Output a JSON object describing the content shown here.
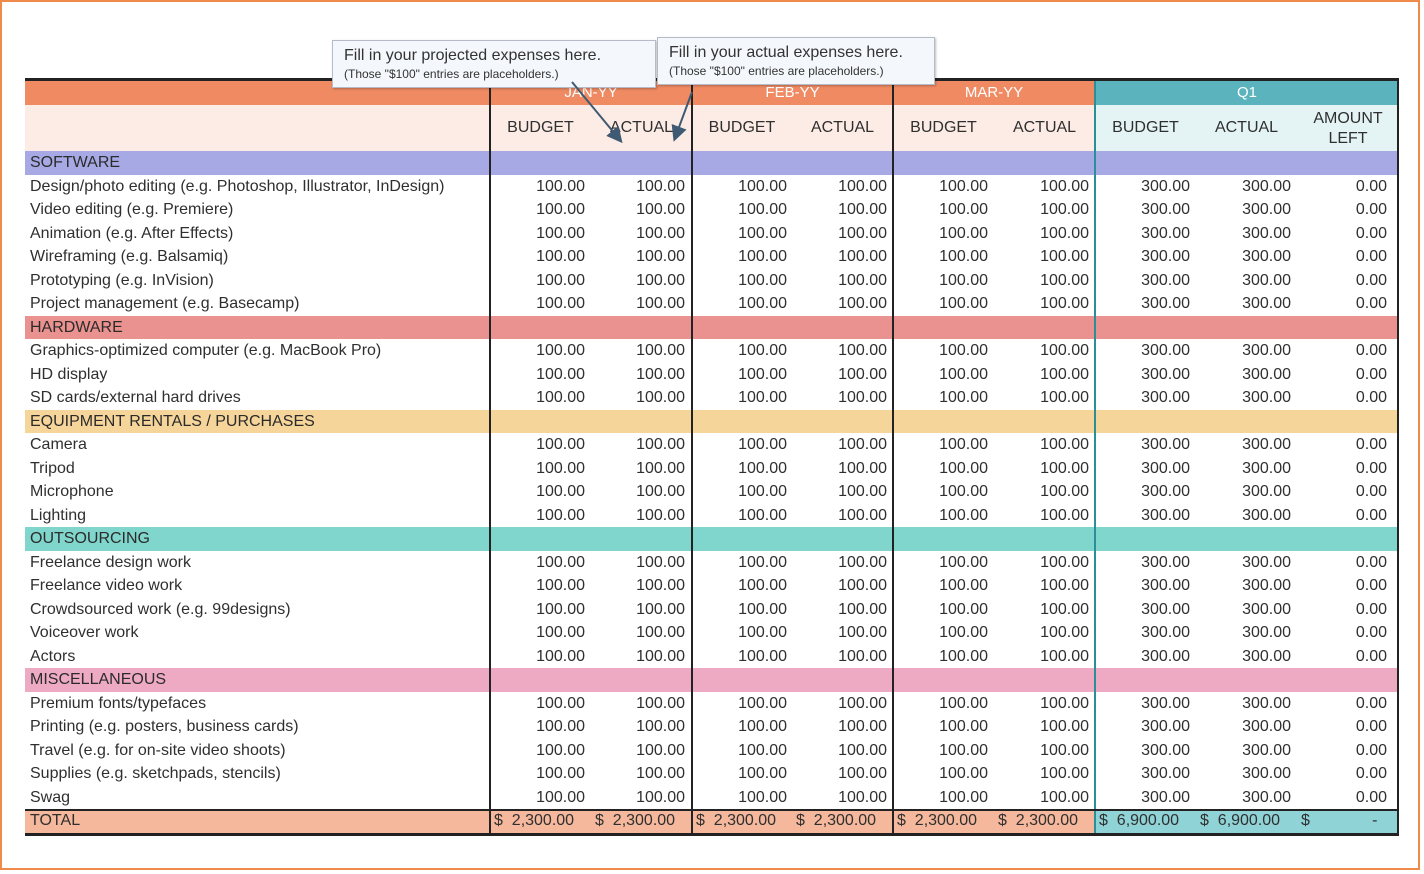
{
  "callouts": {
    "projected": {
      "line1": "Fill in your projected expenses here.",
      "line2": "(Those \"$100\" entries are placeholders.)"
    },
    "actual": {
      "line1": "Fill in your actual expenses here.",
      "line2": "(Those \"$100\" entries are placeholders.)"
    }
  },
  "header": {
    "months": [
      "JAN-YY",
      "FEB-YY",
      "MAR-YY",
      "Q1"
    ],
    "subheaders": [
      "BUDGET",
      "ACTUAL",
      "BUDGET",
      "ACTUAL",
      "BUDGET",
      "ACTUAL",
      "BUDGET",
      "ACTUAL",
      "AMOUNT LEFT"
    ]
  },
  "colors": {
    "month_header": "#ef8a63",
    "q1_header": "#5ab3bd",
    "subheader_bg": "#fdece5",
    "q1_subheader_bg": "#e4f4f5",
    "total_bg": "#f5b89c",
    "total_q1_bg": "#8fd3d7"
  },
  "sections": [
    {
      "name": "SOFTWARE",
      "color": "#a7a9e4",
      "items": [
        "Design/photo editing (e.g. Photoshop, Illustrator, InDesign)",
        "Video editing (e.g. Premiere)",
        "Animation (e.g. After Effects)",
        "Wireframing (e.g. Balsamiq)",
        "Prototyping (e.g. InVision)",
        "Project management (e.g. Basecamp)"
      ]
    },
    {
      "name": "HARDWARE",
      "color": "#e9928f",
      "items": [
        "Graphics-optimized computer (e.g. MacBook Pro)",
        "HD display",
        "SD cards/external hard drives"
      ]
    },
    {
      "name": "EQUIPMENT RENTALS / PURCHASES",
      "color": "#f6d59a",
      "items": [
        "Camera",
        "Tripod",
        "Microphone",
        "Lighting"
      ]
    },
    {
      "name": "OUTSOURCING",
      "color": "#80d6cc",
      "items": [
        "Freelance design work",
        "Freelance video work",
        "Crowdsourced work (e.g. 99designs)",
        "Voiceover work",
        "Actors"
      ]
    },
    {
      "name": "MISCELLANEOUS",
      "color": "#efaac3",
      "items": [
        "Premium fonts/typefaces",
        "Printing (e.g. posters, business cards)",
        "Travel (e.g. for on-site video shoots)",
        "Supplies (e.g. sketchpads, stencils)",
        "Swag"
      ]
    }
  ],
  "item_values": [
    "100.00",
    "100.00",
    "100.00",
    "100.00",
    "100.00",
    "100.00",
    "300.00",
    "300.00",
    "0.00"
  ],
  "total": {
    "label": "TOTAL",
    "values": [
      "$  2,300.00",
      "$  2,300.00",
      "$  2,300.00",
      "$  2,300.00",
      "$  2,300.00",
      "$  2,300.00",
      "$  6,900.00",
      "$  6,900.00",
      "$              -"
    ]
  }
}
